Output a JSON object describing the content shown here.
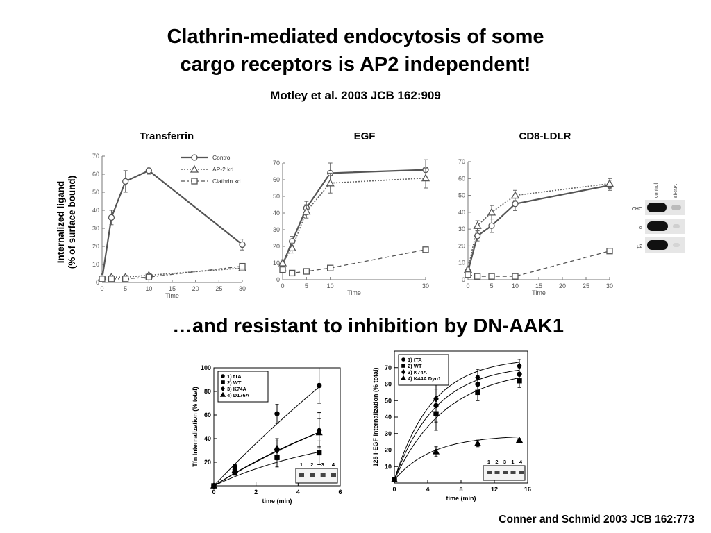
{
  "slide": {
    "title_line1": "Clathrin-mediated endocytosis of some",
    "title_line2": "cargo receptors is AP2 independent!",
    "citation_top": "Motley et al. 2003 JCB 162:909",
    "subtitle": "…and resistant to inhibition by DN-AAK1",
    "citation_bottom": "Conner and Schmid 2003 JCB 162:773"
  },
  "top_ylabel": {
    "line1": "Internalized ligand",
    "line2": "(% of surface bound)"
  },
  "blot": {
    "lanes": [
      "control",
      "siRNA"
    ],
    "rows": [
      "CHC",
      "α",
      "μ2"
    ]
  },
  "chart_data": [
    {
      "type": "line",
      "title": "Transferrin",
      "xlabel": "Time",
      "ylabel": "Internalized ligand (% of surface bound)",
      "xlim": [
        0,
        30
      ],
      "ylim": [
        0,
        70
      ],
      "xticks": [
        0,
        5,
        10,
        15,
        20,
        25,
        30
      ],
      "yticks": [
        0,
        10,
        20,
        30,
        40,
        50,
        60,
        70
      ],
      "legend": "top-right",
      "series": [
        {
          "name": "Control",
          "style": "solid-open-circle",
          "x": [
            0,
            2,
            5,
            10,
            30
          ],
          "y": [
            2,
            36,
            56,
            62,
            21
          ],
          "err": [
            0,
            4,
            6,
            2,
            3
          ]
        },
        {
          "name": "AP-2 kd",
          "style": "dotted-open-triangle",
          "x": [
            0,
            2,
            5,
            10,
            30
          ],
          "y": [
            3,
            3,
            3,
            4,
            8
          ],
          "err": [
            0,
            1,
            1,
            1,
            1
          ]
        },
        {
          "name": "Clathrin kd",
          "style": "dashdot-open-square",
          "x": [
            0,
            2,
            5,
            10,
            30
          ],
          "y": [
            2,
            2,
            2,
            3,
            9
          ],
          "err": [
            0,
            1,
            1,
            1,
            1
          ]
        }
      ]
    },
    {
      "type": "line",
      "title": "EGF",
      "xlabel": "Time",
      "xlim": [
        0,
        30
      ],
      "ylim": [
        0,
        70
      ],
      "xticks": [
        0,
        5,
        10,
        30
      ],
      "yticks": [
        0,
        10,
        20,
        30,
        40,
        50,
        60,
        70
      ],
      "series": [
        {
          "name": "Control",
          "style": "solid-open-circle",
          "x": [
            0,
            2,
            5,
            10,
            30
          ],
          "y": [
            9,
            23,
            43,
            64,
            66
          ],
          "err": [
            2,
            3,
            4,
            6,
            6
          ]
        },
        {
          "name": "AP-2 kd",
          "style": "dotted-open-triangle",
          "x": [
            0,
            2,
            5,
            10,
            30
          ],
          "y": [
            10,
            19,
            41,
            58,
            61
          ],
          "err": [
            2,
            3,
            4,
            6,
            6
          ]
        },
        {
          "name": "Clathrin kd",
          "style": "dashed-open-square",
          "x": [
            0,
            2,
            5,
            10,
            30
          ],
          "y": [
            6,
            4,
            5,
            7,
            18
          ],
          "err": [
            0,
            1,
            1,
            1,
            1
          ]
        }
      ]
    },
    {
      "type": "line",
      "title": "CD8-LDLR",
      "xlabel": "Time",
      "xlim": [
        0,
        30
      ],
      "ylim": [
        0,
        70
      ],
      "xticks": [
        0,
        5,
        10,
        15,
        20,
        25,
        30
      ],
      "yticks": [
        0,
        10,
        20,
        30,
        40,
        50,
        60,
        70
      ],
      "series": [
        {
          "name": "Control",
          "style": "solid-open-circle",
          "x": [
            0,
            2,
            5,
            10,
            30
          ],
          "y": [
            5,
            26,
            32,
            45,
            56
          ],
          "err": [
            1,
            3,
            4,
            4,
            3
          ]
        },
        {
          "name": "AP-2 kd",
          "style": "dotted-open-triangle",
          "x": [
            0,
            2,
            5,
            10,
            30
          ],
          "y": [
            6,
            32,
            40,
            50,
            57
          ],
          "err": [
            1,
            3,
            4,
            3,
            3
          ]
        },
        {
          "name": "Clathrin kd",
          "style": "dashed-open-square",
          "x": [
            0,
            2,
            5,
            10,
            30
          ],
          "y": [
            3,
            2,
            2,
            2,
            17
          ],
          "err": [
            0,
            1,
            1,
            1,
            1
          ]
        }
      ]
    },
    {
      "type": "scatter",
      "xlabel": "time (min)",
      "ylabel": "Tfn Internalization (% total)",
      "xlim": [
        0,
        6
      ],
      "ylim": [
        0,
        100
      ],
      "xticks": [
        0,
        2,
        4,
        6
      ],
      "yticks": [
        20,
        40,
        60,
        80,
        100
      ],
      "legend": "top-left",
      "inset_lanes": [
        "1",
        "2",
        "3",
        "4"
      ],
      "series": [
        {
          "name": "1) tTA",
          "marker": "circle",
          "x": [
            0,
            1,
            3,
            5
          ],
          "y": [
            0,
            16,
            61,
            85
          ],
          "err": [
            0,
            2,
            8,
            15
          ]
        },
        {
          "name": "2) WT",
          "marker": "square",
          "x": [
            0,
            1,
            3,
            5
          ],
          "y": [
            0,
            11,
            24,
            28
          ],
          "err": [
            0,
            2,
            8,
            10
          ]
        },
        {
          "name": "3) K74A",
          "marker": "diamond",
          "x": [
            0,
            1,
            3,
            5
          ],
          "y": [
            0,
            14,
            30,
            47
          ],
          "err": [
            0,
            2,
            8,
            15
          ]
        },
        {
          "name": "4) D176A",
          "marker": "triangle",
          "x": [
            0,
            1,
            3,
            5
          ],
          "y": [
            0,
            13,
            32,
            45
          ],
          "err": [
            0,
            2,
            8,
            12
          ]
        }
      ],
      "fits": [
        {
          "series": "1) tTA",
          "a": 400,
          "k": 0.047
        },
        {
          "series": "2) WT",
          "a": 50,
          "k": 0.17
        },
        {
          "series": "3) K74A",
          "a": 120,
          "k": 0.095
        },
        {
          "series": "4) D176A",
          "a": 140,
          "k": 0.078
        }
      ]
    },
    {
      "type": "scatter",
      "xlabel": "time (min)",
      "ylabel": "125 I-EGF Internalization (% total)",
      "xlim": [
        0,
        16
      ],
      "ylim": [
        0,
        80
      ],
      "xticks": [
        0,
        4,
        8,
        12,
        16
      ],
      "yticks": [
        10,
        20,
        30,
        40,
        50,
        60,
        70
      ],
      "legend": "top-left",
      "inset_lanes": [
        "1",
        "2",
        "3",
        "1",
        "4"
      ],
      "series": [
        {
          "name": "1) tTA",
          "marker": "circle",
          "x": [
            0,
            5,
            10,
            15
          ],
          "y": [
            2,
            47,
            60,
            66
          ],
          "err": [
            0,
            10,
            5,
            4
          ]
        },
        {
          "name": "2) WT",
          "marker": "square",
          "x": [
            0,
            5,
            10,
            15
          ],
          "y": [
            2,
            42,
            55,
            62
          ],
          "err": [
            0,
            10,
            5,
            4
          ]
        },
        {
          "name": "3) K74A",
          "marker": "diamond",
          "x": [
            0,
            5,
            10,
            15
          ],
          "y": [
            2,
            51,
            64,
            71
          ],
          "err": [
            0,
            10,
            5,
            4
          ]
        },
        {
          "name": "4) K44A Dyn1",
          "marker": "triangle",
          "x": [
            0,
            5,
            10,
            15
          ],
          "y": [
            2,
            19,
            24,
            26
          ],
          "err": [
            0,
            3,
            2,
            1
          ]
        }
      ],
      "fits": [
        {
          "series": "1) tTA",
          "a": 70,
          "k": 0.2
        },
        {
          "series": "2) WT",
          "a": 68,
          "k": 0.16
        },
        {
          "series": "3) K74A",
          "a": 74,
          "k": 0.22
        },
        {
          "series": "4) K44A Dyn1",
          "a": 27,
          "k": 0.22
        }
      ]
    }
  ]
}
